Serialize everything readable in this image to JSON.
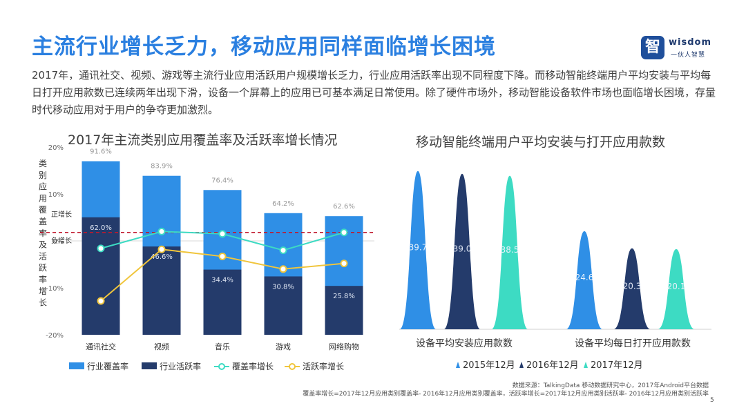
{
  "page": {
    "title": "主流行业增长乏力，移动应用同样面临增长困境",
    "intro": "2017年，通讯社交、视频、游戏等主流行业应用活跃用户规模增长乏力，行业应用活跃率出现不同程度下降。而移动智能终端用户平均安装与平均每日打开应用款数已连续两年出现下滑，设备一个屏幕上的应用已可基本满足日常使用。除了硬件市场外，移动智能设备软件市场也面临增长困境，存量时代移动应用对于用户的争夺更加激烈。",
    "logo": {
      "glyph": "智",
      "word": "wisdom",
      "sub": "一伙人智慧"
    },
    "source": "数据来源：TalkingData 移动数据研究中心，2017年Android平台数据",
    "formula": "覆盖率增长=2017年12月应用类别覆盖率- 2016年12月应用类别覆盖率，活跃率增长=2017年12月应用类别活跃率- 2016年12月应用类别活跃率",
    "page_number": "5",
    "colors": {
      "title": "#2a7fe0",
      "coverage_bar": "#2f8fe6",
      "active_bar": "#243b6b",
      "coverage_growth": "#3ddbc3",
      "active_growth": "#f0c53c",
      "ref_line": "#c0182c"
    }
  },
  "chart_data": [
    {
      "type": "bar",
      "title": "2017年主流类别应用覆盖率及活跃率增长情况",
      "ylabel": "类别应用覆盖率及活跃率增长",
      "categories": [
        "通讯社交",
        "视频",
        "音乐",
        "游戏",
        "网络购物"
      ],
      "bar_ylim": [
        0,
        100
      ],
      "series": [
        {
          "name": "行业覆盖率",
          "kind": "bar",
          "values": [
            91.6,
            83.9,
            76.4,
            64.2,
            62.6
          ],
          "labels": [
            "91.6%",
            "83.9%",
            "76.4%",
            "64.2%",
            "62.6%"
          ]
        },
        {
          "name": "行业活跃率",
          "kind": "bar",
          "values": [
            62.0,
            46.6,
            34.4,
            30.8,
            25.8
          ],
          "labels": [
            "62.0%",
            "46.6%",
            "34.4%",
            "30.8%",
            "25.8%"
          ]
        },
        {
          "name": "覆盖率增长",
          "kind": "line",
          "values": [
            -1.6,
            2.0,
            1.5,
            -2.0,
            1.8
          ]
        },
        {
          "name": "活跃率增长",
          "kind": "line",
          "values": [
            -12.8,
            -1.8,
            -3.3,
            -6.0,
            -4.8
          ]
        }
      ],
      "growth_axis": {
        "ylim": [
          -20,
          20
        ],
        "ticks": [
          "20%",
          "10%",
          "0%",
          "-10%",
          "-20%"
        ]
      },
      "reference_line": {
        "value": 1.8,
        "style": "dashed"
      },
      "annotations": [
        "正增长",
        "负增长"
      ],
      "legend_position": "bottom"
    },
    {
      "type": "bar",
      "title": "移动智能终端用户平均安装与打开应用款数",
      "categories": [
        "设备平均安装应用款数",
        "设备平均每日打开应用款数"
      ],
      "series": [
        {
          "name": "2015年12月",
          "values": [
            39.7,
            24.6
          ]
        },
        {
          "name": "2016年12月",
          "values": [
            39.0,
            20.3
          ]
        },
        {
          "name": "2017年12月",
          "values": [
            38.5,
            20.1
          ]
        }
      ],
      "ylim": [
        0,
        40
      ],
      "legend_position": "bottom"
    }
  ]
}
